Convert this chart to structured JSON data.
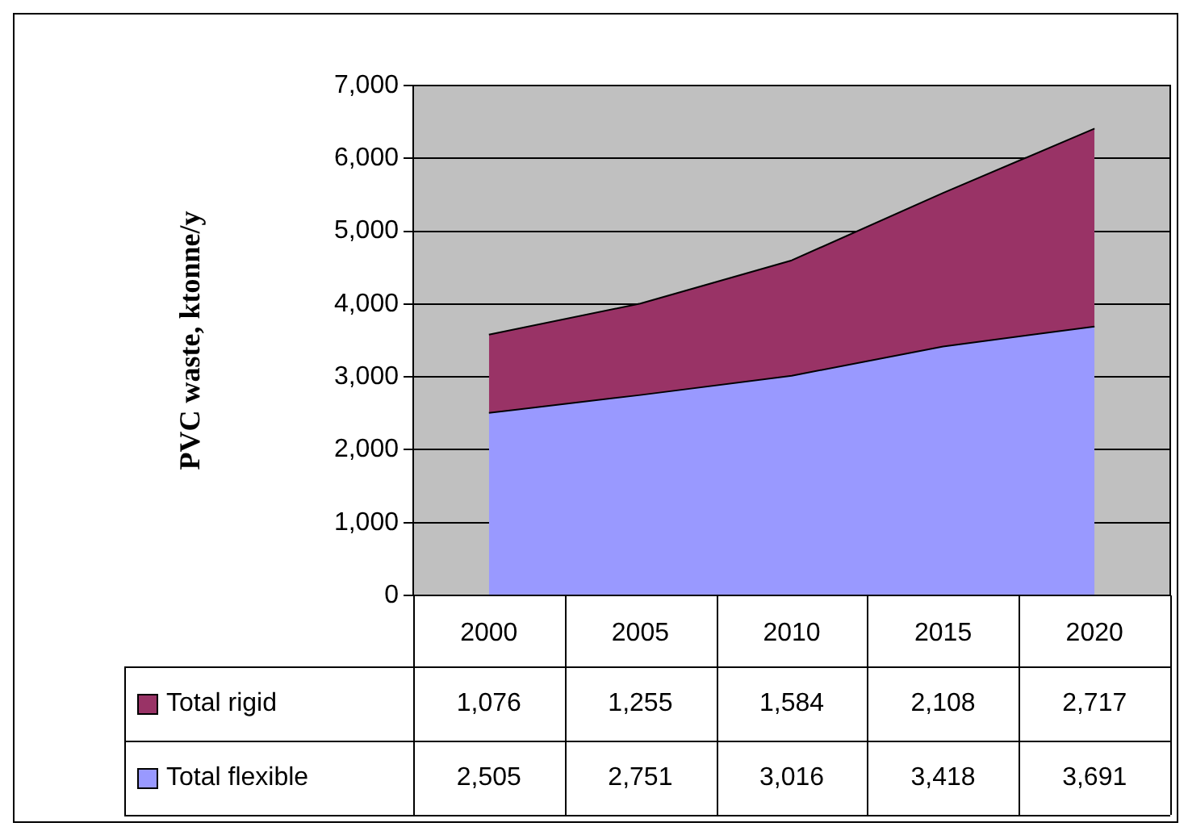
{
  "chart_data": {
    "type": "area",
    "ylabel": "PVC waste, ktonne/y",
    "categories": [
      "2000",
      "2005",
      "2010",
      "2015",
      "2020"
    ],
    "series": [
      {
        "name": "Total flexible",
        "color": "#9999ff",
        "values": [
          2505,
          2751,
          3016,
          3418,
          3691
        ],
        "value_labels": [
          "2,505",
          "2,751",
          "3,016",
          "3,418",
          "3,691"
        ]
      },
      {
        "name": "Total rigid",
        "color": "#993366",
        "values": [
          1076,
          1255,
          1584,
          2108,
          2717
        ],
        "value_labels": [
          "1,076",
          "1,255",
          "1,584",
          "2,108",
          "2,717"
        ]
      }
    ],
    "stacked": true,
    "ylim": [
      0,
      7000
    ],
    "yticks": [
      0,
      {
        "value": 1000,
        "label": "1,000"
      },
      {
        "value": 2000,
        "label": "2,000"
      },
      {
        "value": 3000,
        "label": "3,000"
      },
      {
        "value": 4000,
        "label": "4,000"
      },
      {
        "value": 5000,
        "label": "5,000"
      },
      {
        "value": 6000,
        "label": "6,000"
      },
      {
        "value": 7000,
        "label": "7,000"
      }
    ],
    "grid": "y",
    "legend": "bottom"
  }
}
